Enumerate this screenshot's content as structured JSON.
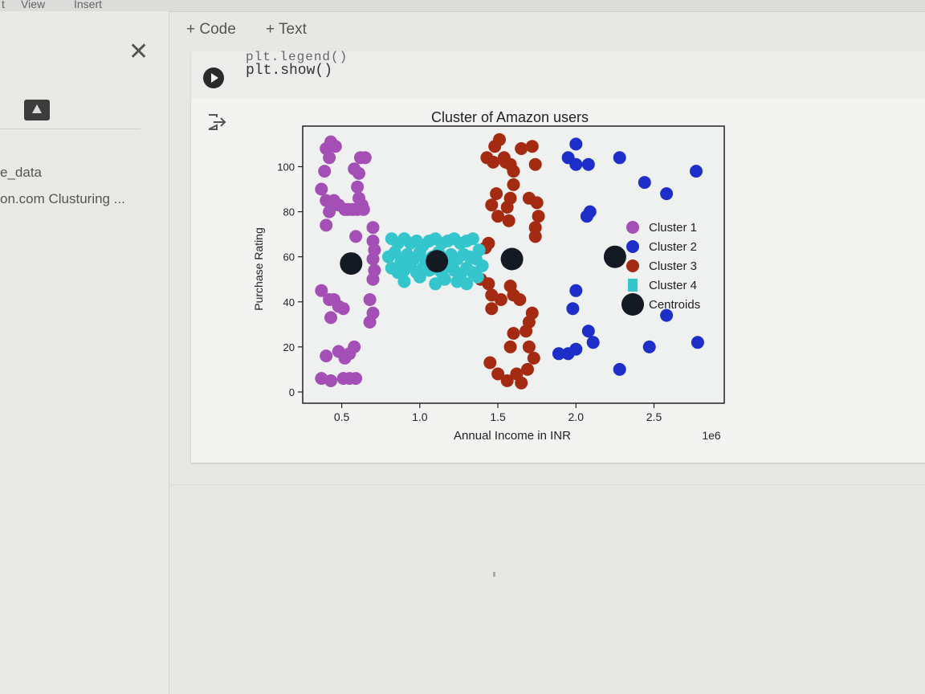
{
  "menubar": {
    "items": [
      "t",
      "View",
      "Insert"
    ]
  },
  "toolbar": {
    "add_code": "+ Code",
    "add_text": "+ Text"
  },
  "sidebar": {
    "items": [
      "e_data",
      "on.com Clusturing ..."
    ],
    "icons": {
      "close": "close-icon",
      "drive": "drive-icon"
    }
  },
  "cell": {
    "code_cut": "plt.legend()",
    "code": "plt.show()",
    "icons": {
      "run": "play-icon",
      "output": "output-arrow-icon"
    }
  },
  "colors": {
    "cluster1": "#a44fb5",
    "cluster2": "#1d2fc8",
    "cluster3": "#a52a12",
    "cluster4": "#34c6cc",
    "centroids": "#141a24"
  },
  "chart_data": {
    "type": "scatter",
    "title": "Cluster of Amazon users",
    "xlabel": "Annual Income in INR",
    "ylabel": "Purchase Rating",
    "x_offset_label": "1e6",
    "xlim": [
      250000,
      2950000
    ],
    "ylim": [
      -5,
      118
    ],
    "xticks": [
      500000,
      1000000,
      1500000,
      2000000,
      2500000
    ],
    "xtick_labels": [
      "0.5",
      "1.0",
      "1.5",
      "2.0",
      "2.5"
    ],
    "yticks": [
      0,
      20,
      40,
      60,
      80,
      100
    ],
    "ytick_labels": [
      "0",
      "20",
      "40",
      "60",
      "80",
      "100"
    ],
    "grid": false,
    "legend": "right",
    "series": [
      {
        "name": "Cluster 1",
        "color": "#a44fb5",
        "points": [
          [
            400000,
            108
          ],
          [
            430000,
            111
          ],
          [
            460000,
            109
          ],
          [
            420000,
            104
          ],
          [
            390000,
            98
          ],
          [
            620000,
            104
          ],
          [
            650000,
            104
          ],
          [
            610000,
            97
          ],
          [
            580000,
            99
          ],
          [
            600000,
            91
          ],
          [
            610000,
            86
          ],
          [
            640000,
            81
          ],
          [
            370000,
            90
          ],
          [
            400000,
            85
          ],
          [
            420000,
            80
          ],
          [
            450000,
            85
          ],
          [
            480000,
            83
          ],
          [
            520000,
            81
          ],
          [
            540000,
            81
          ],
          [
            570000,
            81
          ],
          [
            600000,
            81
          ],
          [
            630000,
            83
          ],
          [
            400000,
            74
          ],
          [
            590000,
            69
          ],
          [
            700000,
            73
          ],
          [
            700000,
            67
          ],
          [
            710000,
            63
          ],
          [
            700000,
            59
          ],
          [
            710000,
            54
          ],
          [
            700000,
            50
          ],
          [
            370000,
            45
          ],
          [
            420000,
            41
          ],
          [
            450000,
            41
          ],
          [
            480000,
            38
          ],
          [
            430000,
            33
          ],
          [
            510000,
            37
          ],
          [
            680000,
            41
          ],
          [
            700000,
            35
          ],
          [
            680000,
            31
          ],
          [
            400000,
            16
          ],
          [
            480000,
            18
          ],
          [
            520000,
            15
          ],
          [
            550000,
            17
          ],
          [
            580000,
            20
          ],
          [
            370000,
            6
          ],
          [
            430000,
            5
          ],
          [
            510000,
            6
          ],
          [
            550000,
            6
          ],
          [
            590000,
            6
          ]
        ]
      },
      {
        "name": "Cluster 2",
        "color": "#1d2fc8",
        "points": [
          [
            2000000,
            110
          ],
          [
            1950000,
            104
          ],
          [
            2000000,
            101
          ],
          [
            2080000,
            101
          ],
          [
            2280000,
            104
          ],
          [
            2770000,
            98
          ],
          [
            2440000,
            93
          ],
          [
            2580000,
            88
          ],
          [
            2090000,
            80
          ],
          [
            2070000,
            78
          ],
          [
            2000000,
            45
          ],
          [
            1980000,
            37
          ],
          [
            2580000,
            34
          ],
          [
            2080000,
            27
          ],
          [
            2110000,
            22
          ],
          [
            2780000,
            22
          ],
          [
            2470000,
            20
          ],
          [
            1890000,
            17
          ],
          [
            1950000,
            17
          ],
          [
            2000000,
            19
          ],
          [
            2280000,
            10
          ]
        ]
      },
      {
        "name": "Cluster 3",
        "color": "#a52a12",
        "points": [
          [
            1480000,
            109
          ],
          [
            1510000,
            112
          ],
          [
            1540000,
            104
          ],
          [
            1470000,
            102
          ],
          [
            1430000,
            104
          ],
          [
            1550000,
            102
          ],
          [
            1580000,
            101
          ],
          [
            1600000,
            98
          ],
          [
            1650000,
            108
          ],
          [
            1720000,
            109
          ],
          [
            1740000,
            101
          ],
          [
            1600000,
            92
          ],
          [
            1580000,
            86
          ],
          [
            1560000,
            82
          ],
          [
            1490000,
            88
          ],
          [
            1460000,
            83
          ],
          [
            1500000,
            78
          ],
          [
            1570000,
            76
          ],
          [
            1700000,
            86
          ],
          [
            1750000,
            84
          ],
          [
            1760000,
            78
          ],
          [
            1740000,
            73
          ],
          [
            1740000,
            69
          ],
          [
            1420000,
            64
          ],
          [
            1440000,
            66
          ],
          [
            1390000,
            50
          ],
          [
            1440000,
            48
          ],
          [
            1460000,
            43
          ],
          [
            1520000,
            41
          ],
          [
            1580000,
            47
          ],
          [
            1600000,
            43
          ],
          [
            1640000,
            41
          ],
          [
            1460000,
            37
          ],
          [
            1700000,
            31
          ],
          [
            1720000,
            35
          ],
          [
            1680000,
            27
          ],
          [
            1700000,
            20
          ],
          [
            1730000,
            15
          ],
          [
            1600000,
            26
          ],
          [
            1580000,
            20
          ],
          [
            1450000,
            13
          ],
          [
            1500000,
            8
          ],
          [
            1560000,
            5
          ],
          [
            1620000,
            8
          ],
          [
            1650000,
            4
          ],
          [
            1690000,
            10
          ]
        ]
      },
      {
        "name": "Cluster 4",
        "color": "#34c6cc",
        "points": [
          [
            820000,
            68
          ],
          [
            860000,
            66
          ],
          [
            900000,
            68
          ],
          [
            940000,
            66
          ],
          [
            980000,
            67
          ],
          [
            1020000,
            65
          ],
          [
            1060000,
            67
          ],
          [
            1100000,
            68
          ],
          [
            1140000,
            66
          ],
          [
            1180000,
            67
          ],
          [
            1220000,
            68
          ],
          [
            1260000,
            66
          ],
          [
            1300000,
            67
          ],
          [
            1340000,
            68
          ],
          [
            800000,
            60
          ],
          [
            840000,
            62
          ],
          [
            880000,
            58
          ],
          [
            920000,
            61
          ],
          [
            960000,
            59
          ],
          [
            1000000,
            62
          ],
          [
            1040000,
            58
          ],
          [
            1080000,
            60
          ],
          [
            1120000,
            62
          ],
          [
            1160000,
            58
          ],
          [
            1200000,
            61
          ],
          [
            1240000,
            59
          ],
          [
            1280000,
            61
          ],
          [
            1320000,
            60
          ],
          [
            1360000,
            59
          ],
          [
            820000,
            55
          ],
          [
            860000,
            53
          ],
          [
            900000,
            54
          ],
          [
            940000,
            56
          ],
          [
            980000,
            53
          ],
          [
            1020000,
            55
          ],
          [
            1060000,
            54
          ],
          [
            1100000,
            55
          ],
          [
            1140000,
            53
          ],
          [
            1180000,
            56
          ],
          [
            1220000,
            54
          ],
          [
            1260000,
            52
          ],
          [
            1300000,
            55
          ],
          [
            1340000,
            53
          ],
          [
            900000,
            49
          ],
          [
            1000000,
            51
          ],
          [
            1100000,
            48
          ],
          [
            1160000,
            50
          ],
          [
            1240000,
            49
          ],
          [
            1300000,
            48
          ],
          [
            1370000,
            51
          ],
          [
            1380000,
            63
          ],
          [
            1400000,
            56
          ]
        ]
      },
      {
        "name": "Centroids",
        "color": "#141a24",
        "points": [
          [
            560000,
            57
          ],
          [
            1110000,
            58
          ],
          [
            1590000,
            59
          ],
          [
            2250000,
            60
          ]
        ]
      }
    ]
  }
}
